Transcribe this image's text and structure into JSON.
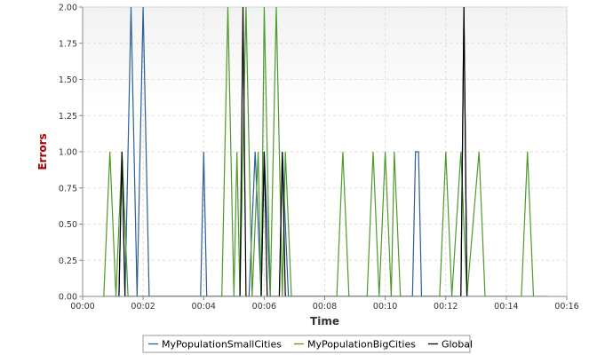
{
  "chart_data": {
    "type": "line",
    "title": "",
    "xlabel": "Time",
    "ylabel": "Errors",
    "x_unit": "mm:ss",
    "xlim": [
      "00:00",
      "00:16"
    ],
    "ylim": [
      0,
      2
    ],
    "xticks": [
      "00:00",
      "00:02",
      "00:04",
      "00:06",
      "00:08",
      "00:10",
      "00:12",
      "00:14",
      "00:16"
    ],
    "yticks": [
      "0.00",
      "0.25",
      "0.50",
      "0.75",
      "1.00",
      "1.25",
      "1.50",
      "1.75",
      "2.00"
    ],
    "grid": true,
    "legend_position": "bottom",
    "colors": {
      "MyPopulationSmallCities": "#2a5f99",
      "MyPopulationBigCities": "#4c9a2a",
      "Global": "#000000",
      "xlabel": "#333333",
      "ylabel": "#aa0000"
    },
    "series": [
      {
        "name": "MyPopulationSmallCities",
        "points": [
          [
            "00:00.7",
            0
          ],
          [
            "00:01.2",
            0
          ],
          [
            "00:01.3",
            1
          ],
          [
            "00:01.4",
            0
          ],
          [
            "00:01.6",
            2
          ],
          [
            "00:01.8",
            0
          ],
          [
            "00:02.0",
            2
          ],
          [
            "00:02.2",
            0
          ],
          [
            "00:03.9",
            0
          ],
          [
            "00:04.0",
            1
          ],
          [
            "00:04.1",
            0
          ],
          [
            "00:05.5",
            0
          ],
          [
            "00:05.7",
            1
          ],
          [
            "00:05.9",
            0
          ],
          [
            "00:06.0",
            1
          ],
          [
            "00:06.2",
            0
          ],
          [
            "00:06.5",
            0
          ],
          [
            "00:06.6",
            1
          ],
          [
            "00:06.8",
            0
          ],
          [
            "00:10.9",
            0
          ],
          [
            "00:11.0",
            1
          ],
          [
            "00:11.1",
            1
          ],
          [
            "00:11.2",
            0
          ],
          [
            "00:12.5",
            0
          ],
          [
            "00:12.6",
            2
          ],
          [
            "00:12.7",
            0
          ],
          [
            "00:15.4",
            0
          ]
        ]
      },
      {
        "name": "MyPopulationBigCities",
        "points": [
          [
            "00:00.7",
            0
          ],
          [
            "00:00.9",
            1
          ],
          [
            "00:01.1",
            0
          ],
          [
            "00:01.3",
            1
          ],
          [
            "00:01.5",
            0
          ],
          [
            "00:04.6",
            0
          ],
          [
            "00:04.8",
            2
          ],
          [
            "00:05.0",
            0
          ],
          [
            "00:05.1",
            1
          ],
          [
            "00:05.2",
            0
          ],
          [
            "00:05.4",
            2
          ],
          [
            "00:05.6",
            0
          ],
          [
            "00:05.8",
            1
          ],
          [
            "00:05.9",
            0
          ],
          [
            "00:06.0",
            2
          ],
          [
            "00:06.2",
            0
          ],
          [
            "00:06.4",
            2
          ],
          [
            "00:06.6",
            0
          ],
          [
            "00:06.7",
            1
          ],
          [
            "00:06.9",
            0
          ],
          [
            "00:08.4",
            0
          ],
          [
            "00:08.6",
            1
          ],
          [
            "00:08.8",
            0
          ],
          [
            "00:09.4",
            0
          ],
          [
            "00:09.6",
            1
          ],
          [
            "00:09.8",
            0
          ],
          [
            "00:10.0",
            1
          ],
          [
            "00:10.2",
            0
          ],
          [
            "00:10.3",
            1
          ],
          [
            "00:10.5",
            0
          ],
          [
            "00:11.8",
            0
          ],
          [
            "00:12.0",
            1
          ],
          [
            "00:12.2",
            0
          ],
          [
            "00:12.5",
            1
          ],
          [
            "00:12.7",
            0
          ],
          [
            "00:13.1",
            1
          ],
          [
            "00:13.3",
            0
          ],
          [
            "00:14.5",
            0
          ],
          [
            "00:14.7",
            1
          ],
          [
            "00:14.9",
            0
          ]
        ]
      },
      {
        "name": "Global",
        "points": [
          [
            "00:01.2",
            0
          ],
          [
            "00:01.3",
            1
          ],
          [
            "00:01.4",
            0
          ],
          [
            "00:05.2",
            0
          ],
          [
            "00:05.3",
            2
          ],
          [
            "00:05.4",
            0
          ],
          [
            "00:05.9",
            0
          ],
          [
            "00:06.0",
            1
          ],
          [
            "00:06.1",
            0
          ],
          [
            "00:06.5",
            0
          ],
          [
            "00:06.6",
            1
          ],
          [
            "00:06.7",
            0
          ],
          [
            "00:12.5",
            0
          ],
          [
            "00:12.6",
            2
          ],
          [
            "00:12.7",
            0
          ]
        ]
      }
    ]
  }
}
